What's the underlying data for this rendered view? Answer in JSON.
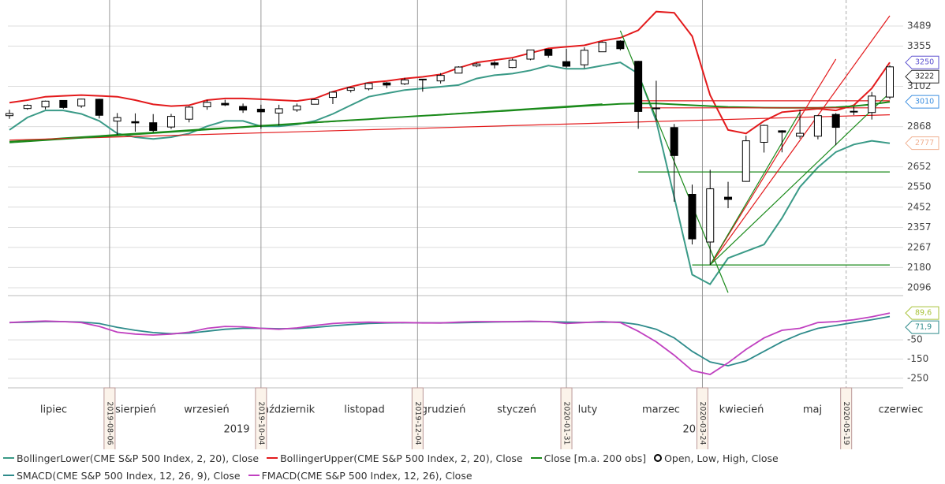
{
  "chart_data": {
    "type": "candlestick",
    "log_scale": true,
    "grid": true,
    "x": [
      "2019-06-28",
      "2019-07-05",
      "2019-07-12",
      "2019-07-19",
      "2019-07-26",
      "2019-08-02",
      "2019-08-09",
      "2019-08-16",
      "2019-08-23",
      "2019-08-30",
      "2019-09-06",
      "2019-09-13",
      "2019-09-20",
      "2019-09-27",
      "2019-10-04",
      "2019-10-11",
      "2019-10-18",
      "2019-10-25",
      "2019-11-01",
      "2019-11-08",
      "2019-11-15",
      "2019-11-22",
      "2019-11-29",
      "2019-12-06",
      "2019-12-13",
      "2019-12-20",
      "2019-12-27",
      "2020-01-03",
      "2020-01-10",
      "2020-01-17",
      "2020-01-24",
      "2020-01-31",
      "2020-02-07",
      "2020-02-14",
      "2020-02-21",
      "2020-02-28",
      "2020-03-06",
      "2020-03-13",
      "2020-03-20",
      "2020-03-27",
      "2020-04-03",
      "2020-04-09",
      "2020-04-17",
      "2020-04-24",
      "2020-05-01",
      "2020-05-08",
      "2020-05-15",
      "2020-05-22",
      "2020-05-29",
      "2020-06-05"
    ],
    "ylim": [
      2064,
      3670
    ],
    "yticks": [
      3489,
      3355,
      3102,
      2868,
      2652,
      2550,
      2452,
      2357,
      2267,
      2180,
      2096
    ],
    "candles": {
      "name": "Open, Low, High, Close",
      "open": [
        2930,
        2971,
        2980,
        3018,
        2986,
        3025,
        2899,
        2896,
        2890,
        2866,
        2910,
        2981,
        3001,
        2983,
        2967,
        2945,
        2963,
        2996,
        3036,
        3078,
        3087,
        3123,
        3117,
        3144,
        3135,
        3183,
        3228,
        3247,
        3218,
        3271,
        3334,
        3255,
        3235,
        3318,
        3388,
        3257,
        2974,
        2863,
        2514,
        2291,
        2500,
        2578,
        2782,
        2845,
        2815,
        2815,
        2937,
        2953,
        2948,
        3038
      ],
      "high": [
        2964,
        2995,
        3017,
        3019,
        3028,
        3028,
        2945,
        2943,
        2939,
        2940,
        2985,
        3021,
        3022,
        3000,
        2993,
        2993,
        3000,
        3027,
        3067,
        3097,
        3121,
        3128,
        3154,
        3146,
        3183,
        3226,
        3248,
        3258,
        3275,
        3330,
        3338,
        3337,
        3347,
        3385,
        3393,
        3260,
        3136,
        2883,
        2562,
        2637,
        2576,
        2818,
        2879,
        2848,
        2965,
        2932,
        2945,
        2981,
        3068,
        3232
      ],
      "low": [
        2912,
        2964,
        2966,
        2970,
        2975,
        2914,
        2822,
        2840,
        2836,
        2855,
        2892,
        2964,
        2985,
        2946,
        2856,
        2874,
        2952,
        2995,
        2997,
        3065,
        3078,
        3091,
        3110,
        3070,
        3119,
        3183,
        3220,
        3212,
        3214,
        3264,
        3280,
        3215,
        3214,
        3317,
        3327,
        2856,
        2901,
        2478,
        2280,
        2191,
        2447,
        2576,
        2727,
        2728,
        2802,
        2798,
        2766,
        2933,
        2908,
        3025
      ],
      "close": [
        2942,
        2990,
        3014,
        2977,
        3026,
        2932,
        2919,
        2889,
        2847,
        2926,
        2979,
        3007,
        2992,
        2962,
        2952,
        2970,
        2986,
        3023,
        3067,
        3093,
        3120,
        3110,
        3141,
        3146,
        3169,
        3221,
        3240,
        3235,
        3265,
        3330,
        3295,
        3226,
        3328,
        3380,
        3338,
        2954,
        2972,
        2711,
        2305,
        2541,
        2489,
        2790,
        2875,
        2837,
        2831,
        2930,
        2864,
        2955,
        3044,
        3222
      ]
    },
    "series": [
      {
        "name": "BollingerLower(CME S&P 500 Index, 2, 20), Close",
        "color": "#3a9a87",
        "values": [
          2850,
          2920,
          2960,
          2960,
          2940,
          2900,
          2830,
          2810,
          2800,
          2810,
          2830,
          2870,
          2900,
          2900,
          2870,
          2870,
          2880,
          2900,
          2940,
          2990,
          3040,
          3060,
          3080,
          3090,
          3100,
          3110,
          3150,
          3170,
          3180,
          3200,
          3230,
          3210,
          3210,
          3230,
          3250,
          3180,
          2900,
          2500,
          2150,
          2110,
          2220,
          2250,
          2280,
          2400,
          2550,
          2650,
          2730,
          2770,
          2790,
          2777
        ]
      },
      {
        "name": "BollingerUpper(CME S&P 500 Index, 2, 20), Close",
        "color": "#e31a1c",
        "values": [
          3005,
          3020,
          3040,
          3045,
          3050,
          3045,
          3040,
          3020,
          2995,
          2985,
          2990,
          3020,
          3030,
          3030,
          3025,
          3020,
          3015,
          3030,
          3070,
          3100,
          3125,
          3135,
          3150,
          3160,
          3175,
          3215,
          3250,
          3265,
          3280,
          3310,
          3340,
          3350,
          3360,
          3390,
          3410,
          3460,
          3588,
          3580,
          3420,
          3050,
          2850,
          2830,
          2900,
          2950,
          2960,
          2970,
          2960,
          2990,
          3090,
          3250
        ]
      },
      {
        "name": "Close [m.a. 200 obs]",
        "color": "#1a8a1a",
        "values": [
          2785,
          2791,
          2797,
          2804,
          2810,
          2816,
          2823,
          2829,
          2835,
          2841,
          2848,
          2854,
          2860,
          2866,
          2873,
          2879,
          2885,
          2892,
          2898,
          2904,
          2910,
          2917,
          2923,
          2929,
          2935,
          2942,
          2948,
          2954,
          2960,
          2967,
          2973,
          2979,
          2986,
          2992,
          2998,
          3000,
          3000,
          2995,
          2990,
          2985,
          2980,
          2978,
          2976,
          2975,
          2975,
          2975,
          2978,
          2985,
          2995,
          3010
        ]
      }
    ],
    "price_markers": [
      {
        "value": 3250,
        "color": "#5a4fcf"
      },
      {
        "value": 3222,
        "color": "#222222"
      },
      {
        "value": 3010,
        "color": "#3b8ee0"
      },
      {
        "value": 2777,
        "color": "#f0b090"
      }
    ],
    "indicator": {
      "ylim": [
        -300,
        160
      ],
      "yticks": [
        -50,
        -150,
        -250
      ],
      "series": [
        {
          "name": "SMACD(CME S&P 500 Index, 12, 26, 9), Close",
          "color": "#2e8b8b",
          "values": [
            40,
            42,
            45,
            45,
            43,
            35,
            15,
            0,
            -12,
            -18,
            -15,
            -5,
            5,
            10,
            10,
            8,
            9,
            15,
            23,
            30,
            35,
            38,
            39,
            39,
            38,
            39,
            41,
            43,
            44,
            45,
            45,
            42,
            41,
            42,
            42,
            30,
            5,
            -40,
            -110,
            -165,
            -185,
            -160,
            -110,
            -60,
            -20,
            10,
            25,
            40,
            55,
            71.9
          ]
        },
        {
          "name": "FMACD(CME S&P 500 Index, 12, 26), Close",
          "color": "#c040c0",
          "values": [
            40,
            45,
            48,
            45,
            40,
            20,
            -10,
            -20,
            -25,
            -20,
            -10,
            10,
            20,
            18,
            10,
            5,
            12,
            25,
            35,
            40,
            42,
            40,
            40,
            38,
            38,
            42,
            45,
            45,
            45,
            47,
            45,
            35,
            40,
            45,
            40,
            -5,
            -60,
            -130,
            -210,
            -230,
            -170,
            -100,
            -40,
            0,
            10,
            40,
            45,
            55,
            70,
            89.6
          ]
        }
      ],
      "markers": [
        {
          "value": 89.6,
          "label": "89,6",
          "color": "#a8c23a"
        },
        {
          "value": 71.9,
          "label": "71,9",
          "color": "#2e8b8b"
        }
      ]
    },
    "months": [
      "lipiec",
      "sierpień",
      "wrzesień",
      "październik",
      "listopad",
      "grudzień",
      "styczeń",
      "luty",
      "marzec",
      "kwiecień",
      "maj",
      "czerwiec"
    ],
    "years": [
      "2019",
      "2020"
    ],
    "date_markers": [
      {
        "date": "2019-08-06",
        "dashed": false
      },
      {
        "date": "2019-10-04",
        "dashed": false
      },
      {
        "date": "2019-12-04",
        "dashed": false
      },
      {
        "date": "2020-01-31",
        "dashed": false
      },
      {
        "date": "2020-03-24",
        "dashed": false
      },
      {
        "date": "2020-05-19",
        "dashed": true
      }
    ],
    "trend_lines": [
      {
        "color": "#e31a1c",
        "points": [
          [
            "2019-06-28",
            2794
          ],
          [
            "2020-06-05",
            2935
          ]
        ]
      },
      {
        "color": "#1a8a1a",
        "points": [
          [
            "2019-06-28",
            2779
          ],
          [
            "2020-02-14",
            2998
          ]
        ]
      },
      {
        "color": "#e31a1c",
        "points": [
          [
            "2020-02-28",
            3016
          ],
          [
            "2020-06-05",
            3016
          ]
        ]
      },
      {
        "color": "#e31a1c",
        "points": [
          [
            "2020-02-28",
            2975
          ],
          [
            "2020-06-05",
            2975
          ]
        ]
      },
      {
        "color": "#1a8a1a",
        "points": [
          [
            "2020-02-28",
            2626
          ],
          [
            "2020-06-05",
            2626
          ]
        ]
      },
      {
        "color": "#1a8a1a",
        "points": [
          [
            "2020-03-20",
            2191
          ],
          [
            "2020-06-05",
            2191
          ]
        ]
      },
      {
        "color": "#1a8a1a",
        "points": [
          [
            "2020-02-21",
            3457
          ],
          [
            "2020-04-03",
            2076
          ]
        ]
      },
      {
        "color": "#e31a1c",
        "points": [
          [
            "2020-03-27",
            2191
          ],
          [
            "2020-06-05",
            3559
          ]
        ]
      },
      {
        "color": "#e31a1c",
        "points": [
          [
            "2020-03-27",
            2191
          ],
          [
            "2020-05-15",
            3271
          ]
        ]
      },
      {
        "color": "#1a8a1a",
        "points": [
          [
            "2020-03-27",
            2191
          ],
          [
            "2020-06-05",
            3063
          ]
        ]
      },
      {
        "color": "#1a8a1a",
        "points": [
          [
            "2020-03-27",
            2191
          ],
          [
            "2020-05-01",
            2950
          ]
        ]
      }
    ]
  }
}
